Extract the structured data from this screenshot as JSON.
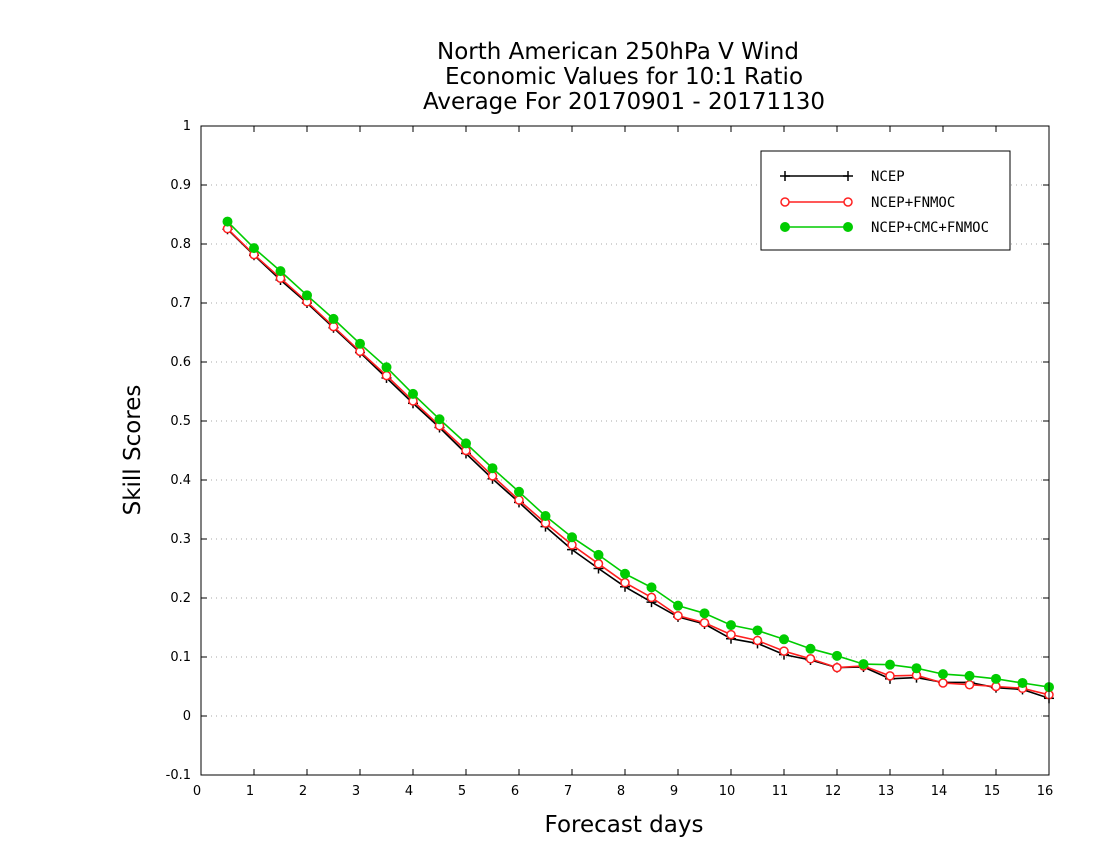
{
  "chart_data": {
    "type": "line",
    "title": [
      "North American 250hPa V Wind",
      "Economic Values for 10:1 Ratio",
      "Average For 20170901 - 20171130"
    ],
    "xlabel": "Forecast days",
    "ylabel": "Skill Scores",
    "xlim": [
      0,
      16
    ],
    "ylim": [
      -0.1,
      1
    ],
    "xticks": [
      0,
      1,
      2,
      3,
      4,
      5,
      6,
      7,
      8,
      9,
      10,
      11,
      12,
      13,
      14,
      15,
      16
    ],
    "yticks": [
      -0.1,
      0,
      0.1,
      0.2,
      0.3,
      0.4,
      0.5,
      0.6,
      0.7,
      0.8,
      0.9,
      1
    ],
    "ytick_labels": [
      "-0.1",
      "0",
      "0.1",
      "0.2",
      "0.3",
      "0.4",
      "0.5",
      "0.6",
      "0.7",
      "0.8",
      "0.9",
      "1"
    ],
    "grid": "horizontal dotted",
    "legend_position": "top-right",
    "x": [
      0.5,
      1,
      1.5,
      2,
      2.5,
      3,
      3.5,
      4,
      4.5,
      5,
      5.5,
      6,
      6.5,
      7,
      7.5,
      8,
      8.5,
      9,
      9.5,
      10,
      10.5,
      11,
      11.5,
      12,
      12.5,
      13,
      13.5,
      14,
      14.5,
      15,
      15.5,
      16
    ],
    "series": [
      {
        "name": "NCEP",
        "color": "#000000",
        "marker": "plus",
        "values": [
          0.825,
          0.781,
          0.739,
          0.7,
          0.658,
          0.616,
          0.573,
          0.53,
          0.489,
          0.445,
          0.402,
          0.362,
          0.321,
          0.282,
          0.25,
          0.219,
          0.193,
          0.168,
          0.156,
          0.131,
          0.123,
          0.104,
          0.095,
          0.082,
          0.083,
          0.063,
          0.065,
          0.057,
          0.057,
          0.048,
          0.045,
          0.03
        ]
      },
      {
        "name": "NCEP+FNMOC",
        "color": "#ff2020",
        "marker": "open-circle",
        "values": [
          0.826,
          0.782,
          0.742,
          0.702,
          0.66,
          0.618,
          0.577,
          0.534,
          0.492,
          0.45,
          0.407,
          0.366,
          0.327,
          0.29,
          0.258,
          0.226,
          0.201,
          0.17,
          0.158,
          0.138,
          0.128,
          0.11,
          0.097,
          0.082,
          0.085,
          0.068,
          0.069,
          0.056,
          0.053,
          0.05,
          0.047,
          0.036
        ]
      },
      {
        "name": "NCEP+CMC+FNMOC",
        "color": "#00cc00",
        "marker": "filled-circle",
        "values": [
          0.838,
          0.793,
          0.754,
          0.713,
          0.673,
          0.631,
          0.591,
          0.546,
          0.503,
          0.462,
          0.42,
          0.38,
          0.339,
          0.303,
          0.273,
          0.241,
          0.218,
          0.187,
          0.174,
          0.154,
          0.145,
          0.13,
          0.114,
          0.102,
          0.088,
          0.087,
          0.081,
          0.071,
          0.068,
          0.063,
          0.056,
          0.049
        ]
      }
    ]
  }
}
